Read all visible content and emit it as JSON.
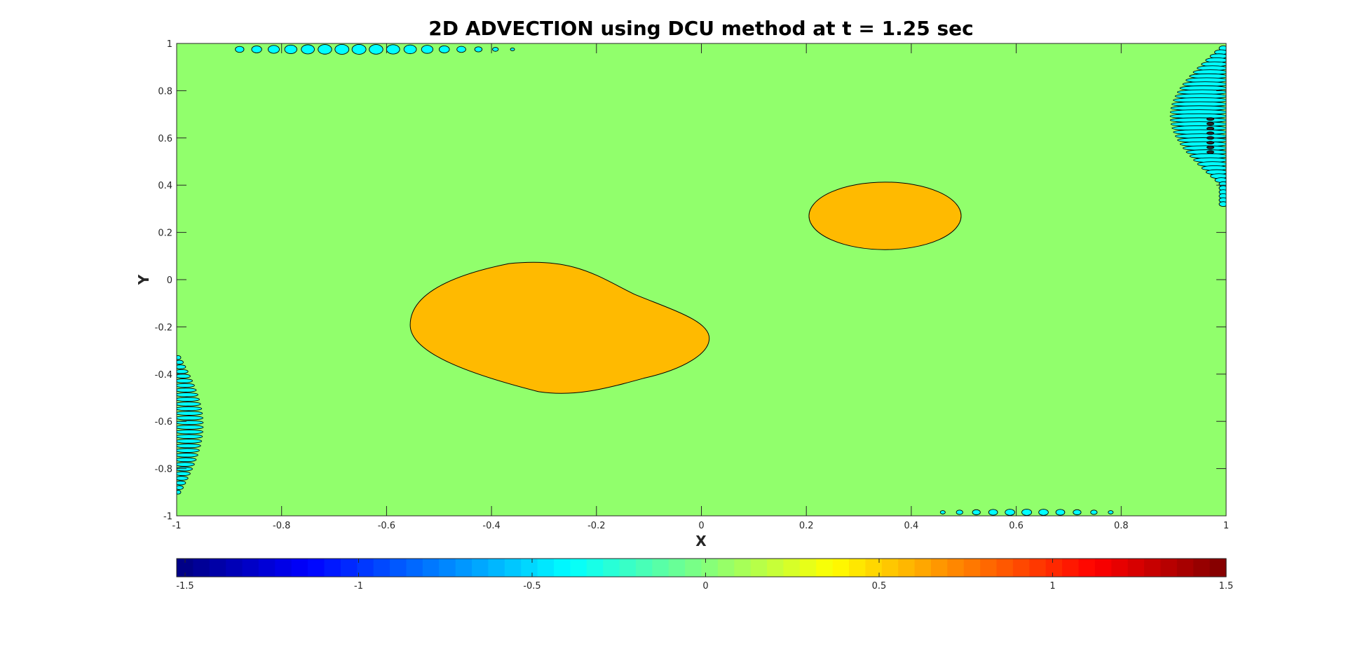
{
  "chart_data": {
    "type": "heatmap",
    "title": "2D ADVECTION using DCU method at t = 1.25 sec",
    "xlabel": "X",
    "ylabel": "Y",
    "xlim": [
      -1,
      1
    ],
    "ylim": [
      -1,
      1
    ],
    "x_ticks": [
      "-1",
      "-0.8",
      "-0.6",
      "-0.4",
      "-0.2",
      "0",
      "0.2",
      "0.4",
      "0.6",
      "0.8",
      "1"
    ],
    "y_ticks": [
      "-1",
      "-0.8",
      "-0.6",
      "-0.4",
      "-0.2",
      "0",
      "0.2",
      "0.4",
      "0.6",
      "0.8",
      "1"
    ],
    "colorbar": {
      "range": [
        -1.5,
        1.5
      ],
      "ticks": [
        "-1.5",
        "-1",
        "-0.5",
        "0",
        "0.5",
        "1",
        "1.5"
      ],
      "colormap": "jet",
      "location": "bottom"
    },
    "grid": false,
    "background_level": 0,
    "background_color": "#91ff6c",
    "blobs": [
      {
        "shape": "ellipse",
        "cx": 0.35,
        "cy": 0.27,
        "rx": 0.145,
        "ry": 0.143,
        "level": 0.6,
        "color": "#ffba00"
      },
      {
        "shape": "rounded-rhombus",
        "cx": -0.27,
        "cy": -0.2,
        "x_extent": [
          -0.555,
          0.015
        ],
        "y_extent": [
          -0.48,
          0.085
        ],
        "level": 0.6,
        "color": "#ffba00"
      }
    ],
    "oscillation_regions": [
      {
        "edge": "left",
        "y_range": [
          -0.9,
          -0.33
        ],
        "level": -0.4,
        "color": "#00ffff"
      },
      {
        "edge": "right",
        "y_range": [
          0.32,
          0.98
        ],
        "level": -0.4,
        "color": "#00ffff"
      },
      {
        "edge": "top",
        "x_range": [
          -0.88,
          -0.36
        ],
        "level": -0.4,
        "color": "#00ffff"
      },
      {
        "edge": "bottom",
        "x_range": [
          0.46,
          0.78
        ],
        "level": -0.4,
        "color": "#00ffff"
      }
    ]
  }
}
